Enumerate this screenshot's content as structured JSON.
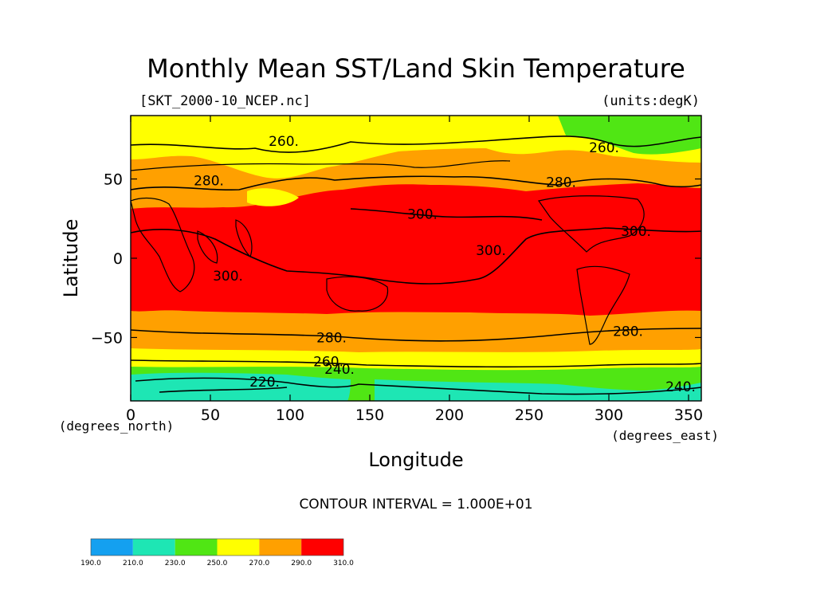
{
  "chart_data": {
    "type": "heatmap",
    "title": "Monthly Mean SST/Land Skin Temperature",
    "file_label": "[SKT_2000-10_NCEP.nc]",
    "units_label": "(units:degK)",
    "xlabel": "Longitude",
    "ylabel": "Latitude",
    "x_unit_label": "(degrees_east)",
    "y_unit_label": "(degrees_north)",
    "xlim": [
      0,
      358
    ],
    "ylim": [
      -90,
      90
    ],
    "x_ticks": [
      0,
      50,
      100,
      150,
      200,
      250,
      300,
      350
    ],
    "y_ticks": [
      50,
      0,
      -50
    ],
    "contour_interval_text": "CONTOUR INTERVAL = 1.000E+01",
    "colorbar": {
      "levels": [
        "190.0",
        "210.0",
        "230.0",
        "250.0",
        "270.0",
        "290.0",
        "310.0"
      ],
      "colors": [
        "#14a0f0",
        "#1ee6b4",
        "#50e614",
        "#ffff00",
        "#ffa000",
        "#ff0000"
      ]
    },
    "contour_labels": [
      {
        "text": "260.",
        "lon": 96,
        "lat": 74
      },
      {
        "text": "280.",
        "lon": 49,
        "lat": 49
      },
      {
        "text": "300.",
        "lon": 183,
        "lat": 28
      },
      {
        "text": "300.",
        "lon": 61,
        "lat": -11
      },
      {
        "text": "300.",
        "lon": 226,
        "lat": 5
      },
      {
        "text": "300.",
        "lon": 317,
        "lat": 17
      },
      {
        "text": "280.",
        "lon": 126,
        "lat": -50
      },
      {
        "text": "280.",
        "lon": 312,
        "lat": -46
      },
      {
        "text": "280.",
        "lon": 270,
        "lat": 48
      },
      {
        "text": "260.",
        "lon": 297,
        "lat": 70
      },
      {
        "text": "260.",
        "lon": 124,
        "lat": -65
      },
      {
        "text": "240.",
        "lon": 131,
        "lat": -70
      },
      {
        "text": "220.",
        "lon": 84,
        "lat": -78
      },
      {
        "text": "240.",
        "lon": 345,
        "lat": -81
      }
    ]
  }
}
